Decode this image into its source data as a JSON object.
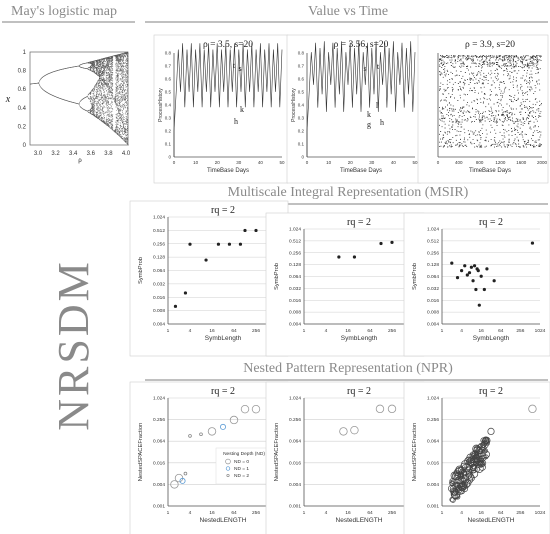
{
  "headers": {
    "logistic": "May's logistic map",
    "value_time": "Value vs Time",
    "msir": "Multiscale Integral Representation (MSIR)",
    "npr": "Nested Pattern Representation (NPR)",
    "side": "NRSDM"
  },
  "logistic_panel": {
    "ylabel": "x",
    "xlabel": "ρ",
    "yticks": [
      "0",
      "0.2",
      "0.4",
      "0.6",
      "0.8",
      "1"
    ],
    "xticks": [
      "3.0",
      "3.2",
      "3.4",
      "3.6",
      "3.8",
      "4.0"
    ]
  },
  "value_time": [
    {
      "title": "ρ = 3.5, s=20",
      "ylabel": "ProcessHistory",
      "xlabel": "TimeBase Days",
      "yticks": [
        "0",
        "0.1",
        "0.2",
        "0.3",
        "0.4",
        "0.5",
        "0.6",
        "0.7",
        "0.8"
      ],
      "xticks": [
        "0",
        "10",
        "20",
        "30",
        "40",
        "50"
      ],
      "annotations": [
        "t",
        "s",
        "k",
        "h"
      ]
    },
    {
      "title": "ρ = 3.56, s=20",
      "ylabel": "ProcessHistory",
      "xlabel": "TimeBase Days",
      "yticks": [
        "0",
        "0.1",
        "0.2",
        "0.3",
        "0.4",
        "0.5",
        "0.6",
        "0.7",
        "0.8"
      ],
      "xticks": [
        "0",
        "10",
        "20",
        "30",
        "40",
        "50"
      ],
      "annotations": [
        "s",
        "t",
        "l",
        "k",
        "g",
        "h"
      ]
    },
    {
      "title": "ρ = 3.9, s=20",
      "ylabel": "",
      "xlabel": "TimeBase Days",
      "yticks": [],
      "xticks": [
        "0",
        "400",
        "800",
        "1200",
        "1600",
        "2000"
      ],
      "annotations": []
    }
  ],
  "msir": [
    {
      "title": "rq = 2",
      "ylabel": "SymbProb",
      "xlabel": "SymbLength",
      "yticks": [
        "0.004",
        "0.008",
        "0.016",
        "0.032",
        "0.064",
        "0.128",
        "0.256",
        "0.512",
        "1.024"
      ],
      "xticks": [
        "1",
        "4",
        "16",
        "64",
        "256",
        "1024"
      ]
    },
    {
      "title": "rq = 2",
      "ylabel": "SymbProb",
      "xlabel": "SymbLength",
      "yticks": [
        "0.004",
        "0.008",
        "0.016",
        "0.032",
        "0.064",
        "0.128",
        "0.256",
        "0.512",
        "1.024"
      ],
      "xticks": [
        "1",
        "4",
        "16",
        "64",
        "256"
      ]
    },
    {
      "title": "rq = 2",
      "ylabel": "SymbProb",
      "xlabel": "SymbLength",
      "yticks": [
        "0.004",
        "0.008",
        "0.016",
        "0.032",
        "0.064",
        "0.128",
        "0.256",
        "0.512",
        "1.024"
      ],
      "xticks": [
        "1",
        "4",
        "16",
        "64",
        "256",
        "1024"
      ]
    }
  ],
  "npr": [
    {
      "title": "rq = 2",
      "ylabel": "NestedSPACEFraction",
      "xlabel": "NestedLENGTH",
      "yticks": [
        "0.001",
        "0.004",
        "0.016",
        "0.064",
        "0.256",
        "1.024"
      ],
      "xticks": [
        "1",
        "4",
        "16",
        "64",
        "256",
        "1024"
      ],
      "legend": {
        "title": "Nesting Depth (ND)",
        "items": [
          "ND = 0",
          "ND = 1",
          "ND = 2"
        ]
      }
    },
    {
      "title": "rq = 2",
      "ylabel": "NestedSPACEFraction",
      "xlabel": "NestedLENGTH",
      "yticks": [
        "0.001",
        "0.004",
        "0.016",
        "0.064",
        "0.256",
        "1.024"
      ],
      "xticks": [
        "1",
        "4",
        "16",
        "64",
        "256",
        "1024"
      ]
    },
    {
      "title": "rq = 2",
      "ylabel": "NestedSPACEFraction",
      "xlabel": "NestedLENGTH",
      "yticks": [
        "0.001",
        "0.004",
        "0.016",
        "0.064",
        "0.256",
        "1.024"
      ],
      "xticks": [
        "1",
        "4",
        "16",
        "64",
        "256",
        "1024"
      ]
    }
  ],
  "chart_data": [
    {
      "type": "scatter",
      "panel": "msir-1",
      "x": [
        1.6,
        3,
        4,
        11,
        24,
        48,
        96,
        128,
        256
      ],
      "y": [
        0.01,
        0.02,
        0.25,
        0.11,
        0.25,
        0.25,
        0.25,
        0.51,
        0.51
      ]
    },
    {
      "type": "scatter",
      "panel": "msir-2",
      "x": [
        9,
        24,
        128,
        256
      ],
      "y": [
        0.2,
        0.2,
        0.44,
        0.47
      ]
    },
    {
      "type": "scatter",
      "panel": "msir-3",
      "x": [
        2,
        3,
        4,
        5,
        6,
        7,
        8,
        9,
        10,
        11,
        12,
        13,
        14,
        16,
        20,
        24,
        40,
        600
      ],
      "y": [
        0.14,
        0.06,
        0.09,
        0.12,
        0.07,
        0.08,
        0.11,
        0.05,
        0.12,
        0.03,
        0.1,
        0.09,
        0.012,
        0.065,
        0.03,
        0.1,
        0.05,
        0.45
      ]
    },
    {
      "type": "scatter",
      "panel": "npr-1",
      "x": [
        1.5,
        2,
        2.5,
        3,
        4,
        8,
        16,
        32,
        64,
        128,
        256
      ],
      "y": [
        0.004,
        0.006,
        0.005,
        0.008,
        0.09,
        0.1,
        0.12,
        0.16,
        0.25,
        0.5,
        0.5
      ],
      "nd": [
        0,
        0,
        1,
        2,
        2,
        2,
        0,
        1,
        0,
        0,
        0
      ]
    },
    {
      "type": "scatter",
      "panel": "npr-2",
      "x": [
        12,
        24,
        120,
        256
      ],
      "y": [
        0.12,
        0.13,
        0.51,
        0.51
      ],
      "nd": [
        0,
        0,
        0,
        0
      ]
    },
    {
      "type": "scatter",
      "panel": "npr-3",
      "x": [
        600
      ],
      "y": [
        0.51
      ],
      "nd": [
        0
      ]
    }
  ]
}
